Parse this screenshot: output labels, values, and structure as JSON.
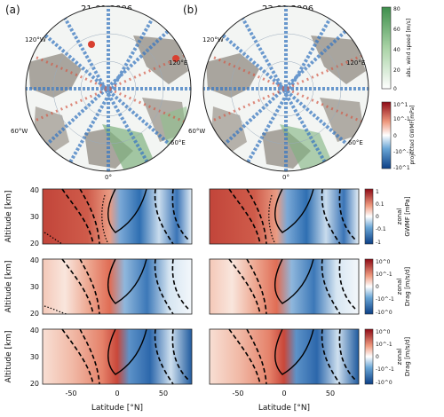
{
  "panels": {
    "a": {
      "tag": "(a)",
      "date": "21-01-2006"
    },
    "b": {
      "tag": "(b)",
      "date": "23-01-2006"
    }
  },
  "polar_map": {
    "lon_labels": {
      "w120": "120°W",
      "e120": "120°E",
      "w60": "60°W",
      "e60": "60°E",
      "zero": "0°"
    },
    "colors": {
      "land": "#a9a59e",
      "ocean": "#f3f5f3",
      "warm": "#c63a2c",
      "cool": "#2f6fae",
      "wind": "#6fa96f"
    }
  },
  "colorbars": {
    "wind": {
      "label": "abs. wind speed [m/s]",
      "ticks": [
        "80",
        "60",
        "40",
        "20",
        "0"
      ],
      "range": [
        0,
        80
      ]
    },
    "gwmf_projected": {
      "label": "projected GWMF[mPa]",
      "ticks": [
        "10^1",
        "10^-1",
        "0",
        "-10^-1",
        "-10^1"
      ]
    },
    "zonal_gwmf": {
      "label_line1": "zonal",
      "label_line2": "GWMF [mPa]",
      "ticks": [
        "1",
        "0.1",
        "0",
        "-0.1",
        "-1"
      ]
    },
    "zonal_drag_1": {
      "label_line1": "zonal",
      "label_line2": "Drag [m/s/d]",
      "ticks": [
        "10^0",
        "10^-1",
        "0",
        "-10^-1",
        "-10^0"
      ]
    },
    "zonal_drag_2": {
      "label_line1": "zonal",
      "label_line2": "Drag [m/s/d]",
      "ticks": [
        "10^0",
        "10^-1",
        "0",
        "-10^-1",
        "-10^0"
      ]
    }
  },
  "axes": {
    "ylabel": "Altitude [km]",
    "xlabel": "Latitude [°N]",
    "yticks": [
      "40",
      "30",
      "20"
    ],
    "xticks": [
      "-50",
      "0",
      "50"
    ]
  },
  "chart_data": {
    "type": "heatmap",
    "rows": [
      "zonal GWMF [mPa]",
      "zonal Drag [m/s/d]",
      "zonal Drag [m/s/d]"
    ],
    "columns": [
      "21-01-2006",
      "23-01-2006"
    ],
    "xlim": [
      -80,
      80
    ],
    "ylim": [
      20,
      40
    ],
    "xticks": [
      -50,
      0,
      50
    ],
    "yticks": [
      20,
      30,
      40
    ]
  }
}
